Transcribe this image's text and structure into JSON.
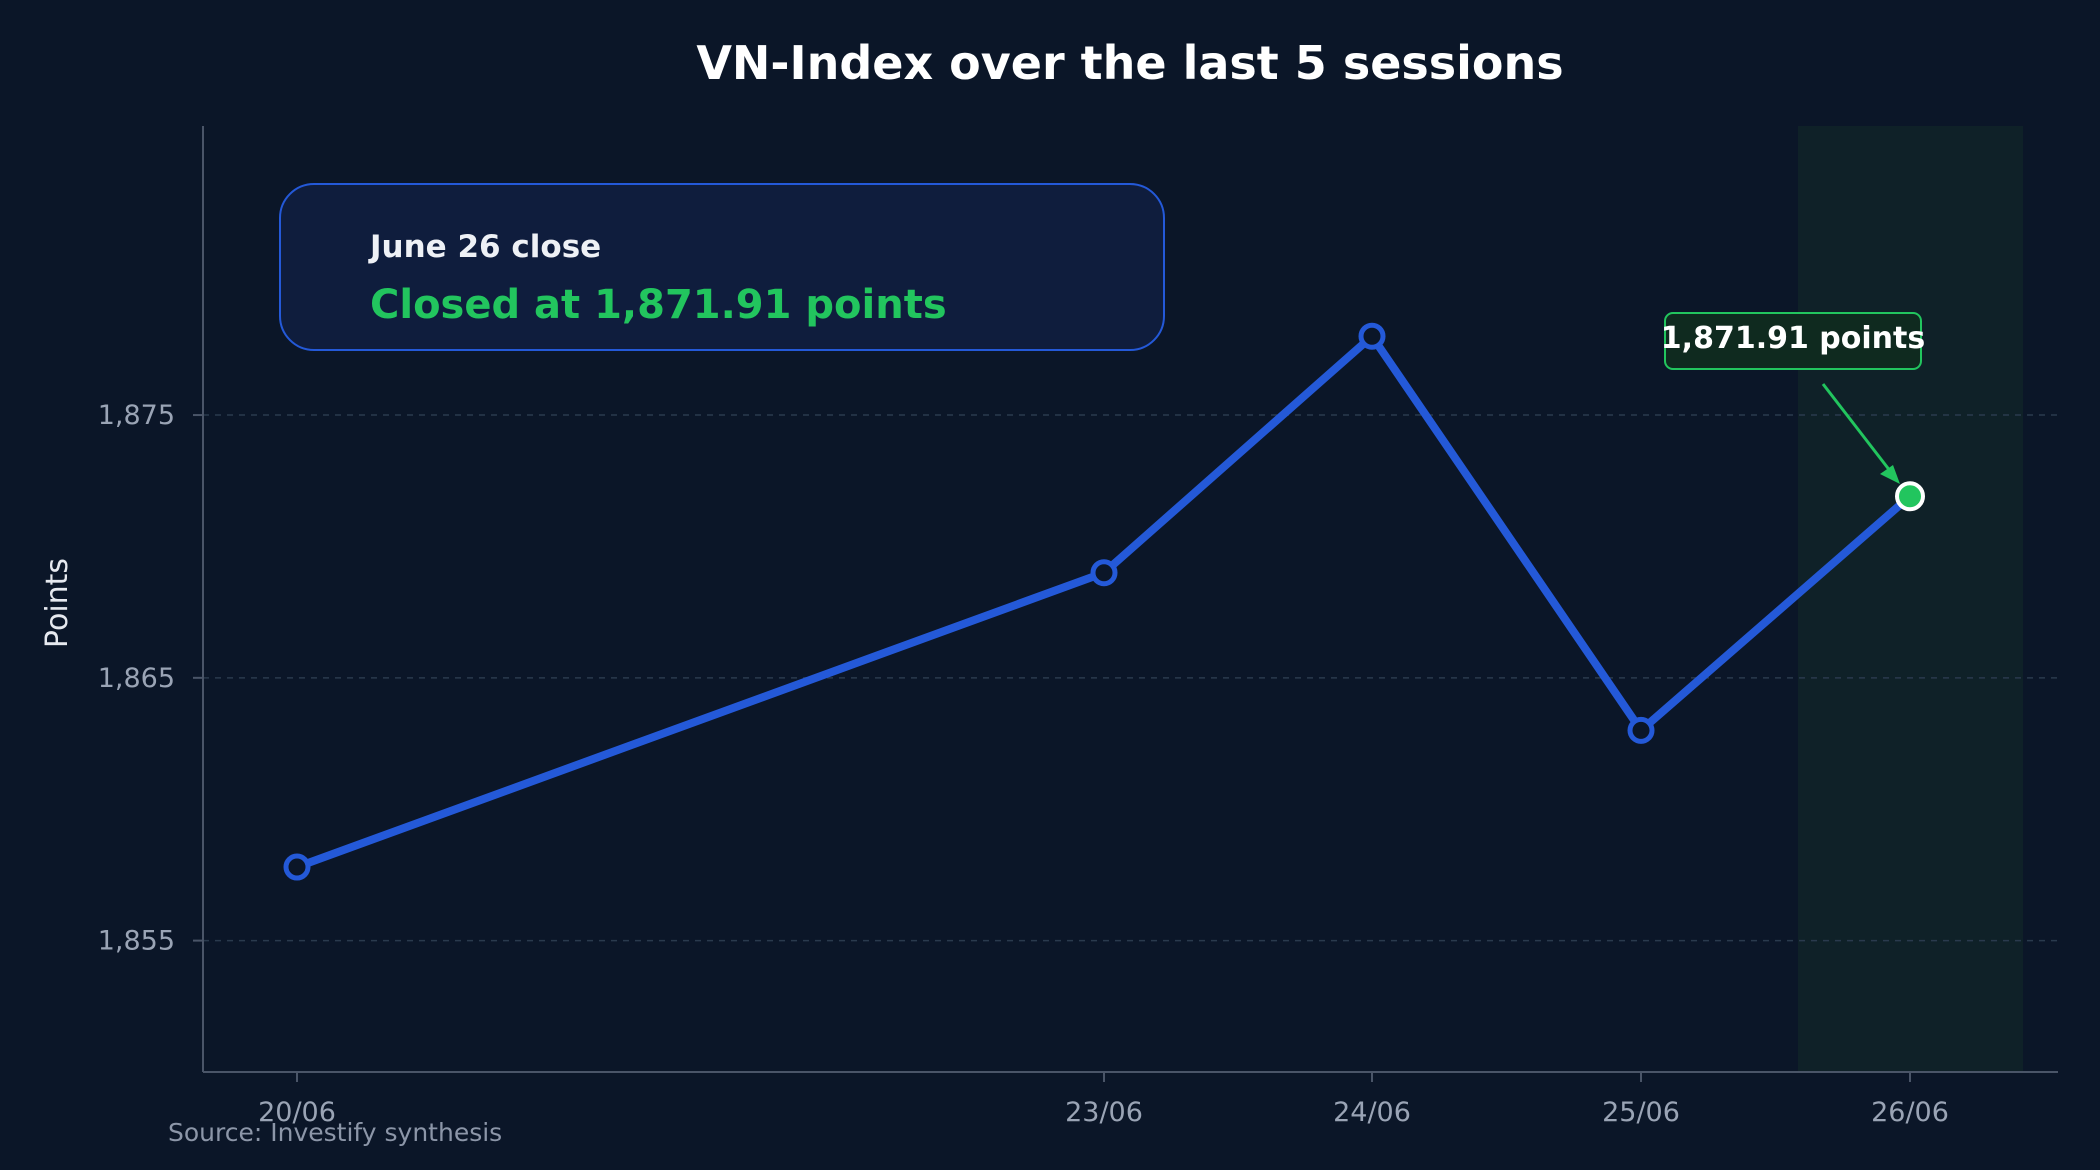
{
  "chart_data": {
    "type": "line",
    "title": "VN-Index over the last 5 sessions",
    "xlabel": "",
    "ylabel": "Points",
    "categories": [
      "20/06",
      "23/06",
      "24/06",
      "25/06",
      "26/06"
    ],
    "series": [
      {
        "values": [
          1857.8,
          1869.0,
          1878.0,
          1863.0,
          1871.91
        ]
      }
    ],
    "yticks": [
      "1,855",
      "1,865",
      "1,875"
    ],
    "ytick_values": [
      1855,
      1865,
      1875
    ],
    "ylim": [
      1850,
      1886
    ],
    "grid": "horizontal dashed",
    "highlight_category": "26/06",
    "annotation": {
      "category": "26/06",
      "text": "1,871.91 points"
    },
    "info_box": {
      "label": "June 26 close",
      "value": "Closed at 1,871.91 points"
    },
    "source": "Source: Investify synthesis",
    "colors": {
      "background": "#0b1628",
      "line": "#2459d8",
      "highlight": "#22c55e",
      "highlight_band": "#0f2128",
      "info_box_fill": "#0f1d3d",
      "info_box_border": "#2459d8",
      "grid": "#2a3a4d",
      "axis": "#4a5568"
    }
  }
}
